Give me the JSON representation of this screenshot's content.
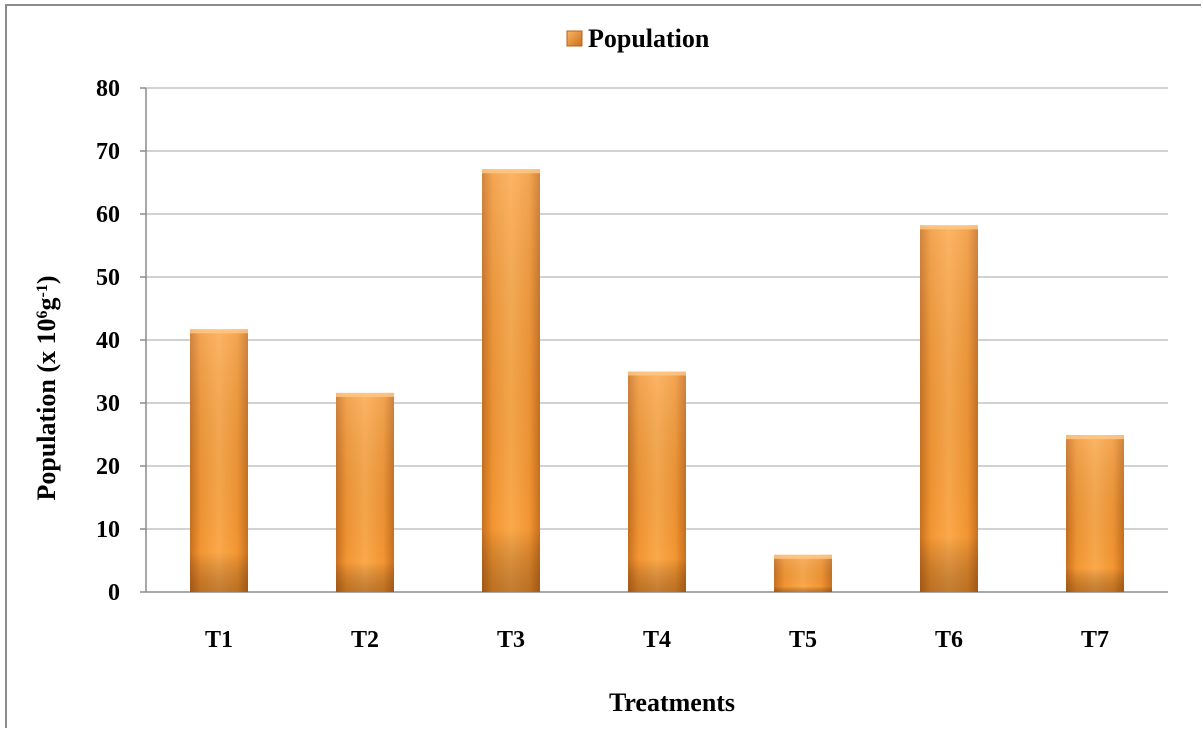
{
  "chart_data": {
    "type": "bar",
    "title": "",
    "xlabel": "Treatments",
    "ylabel": "Population (x 10",
    "ylabel_sup1": "6",
    "ylabel_mid": "g",
    "ylabel_sup2": "-1",
    "ylabel_end": ")",
    "categories": [
      "T1",
      "T2",
      "T3",
      "T4",
      "T5",
      "T6",
      "T7"
    ],
    "series": [
      {
        "name": "Population",
        "values": [
          41.7,
          31.6,
          67.1,
          35.0,
          5.9,
          58.2,
          24.9
        ]
      }
    ],
    "ylim": [
      0,
      80
    ],
    "yticks": [
      0,
      10,
      20,
      30,
      40,
      50,
      60,
      70,
      80
    ],
    "grid": true,
    "legend": "top-center",
    "colors": {
      "bar_light": "#fdb560",
      "bar_mid": "#f49a35",
      "bar_dark": "#b8611a",
      "gridline": "#a6a6a6",
      "frame": "#8c8c8c"
    }
  }
}
